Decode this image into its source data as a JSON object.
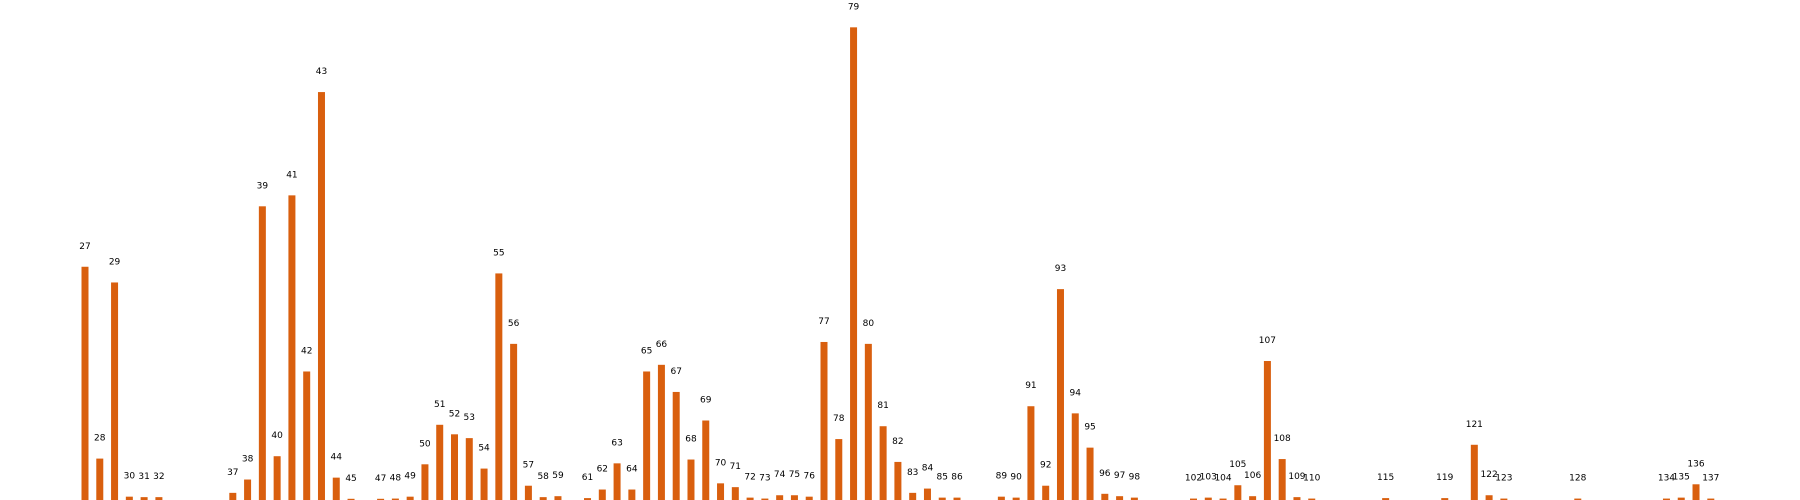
{
  "chart_data": {
    "type": "bar",
    "title": "",
    "xlabel": "",
    "ylabel": "",
    "grid": false,
    "legend": "none",
    "bar_color": "#d95f0e",
    "xlim": [
      23,
      140
    ],
    "ylim": [
      0,
      1.0
    ],
    "series": [
      {
        "x": [
          27,
          28,
          29,
          30,
          31,
          32,
          37,
          38,
          39,
          40,
          41,
          42,
          43,
          44,
          45,
          47,
          48,
          49,
          50,
          51,
          52,
          53,
          54,
          55,
          56,
          57,
          58,
          59,
          61,
          62,
          63,
          64,
          65,
          66,
          67,
          68,
          69,
          70,
          71,
          72,
          73,
          74,
          75,
          76,
          77,
          78,
          79,
          80,
          81,
          82,
          83,
          84,
          85,
          86,
          89,
          90,
          91,
          92,
          93,
          94,
          95,
          96,
          97,
          98,
          102,
          103,
          104,
          105,
          106,
          107,
          108,
          109,
          110,
          115,
          119,
          121,
          122,
          123,
          128,
          134,
          135,
          136,
          137
        ],
        "values": [
          0.49,
          0.087,
          0.457,
          0.007,
          0.006,
          0.006,
          0.015,
          0.043,
          0.617,
          0.092,
          0.64,
          0.27,
          0.857,
          0.047,
          0.002,
          0.002,
          0.003,
          0.007,
          0.075,
          0.158,
          0.138,
          0.13,
          0.066,
          0.476,
          0.328,
          0.03,
          0.006,
          0.008,
          0.004,
          0.022,
          0.077,
          0.022,
          0.27,
          0.284,
          0.227,
          0.085,
          0.167,
          0.035,
          0.027,
          0.005,
          0.003,
          0.01,
          0.01,
          0.007,
          0.332,
          0.128,
          0.993,
          0.328,
          0.155,
          0.08,
          0.015,
          0.024,
          0.005,
          0.005,
          0.007,
          0.005,
          0.197,
          0.03,
          0.443,
          0.182,
          0.11,
          0.013,
          0.008,
          0.005,
          0.003,
          0.005,
          0.003,
          0.031,
          0.008,
          0.292,
          0.086,
          0.006,
          0.003,
          0.004,
          0.004,
          0.116,
          0.01,
          0.003,
          0.003,
          0.003,
          0.005,
          0.033,
          0.003
        ]
      }
    ]
  }
}
